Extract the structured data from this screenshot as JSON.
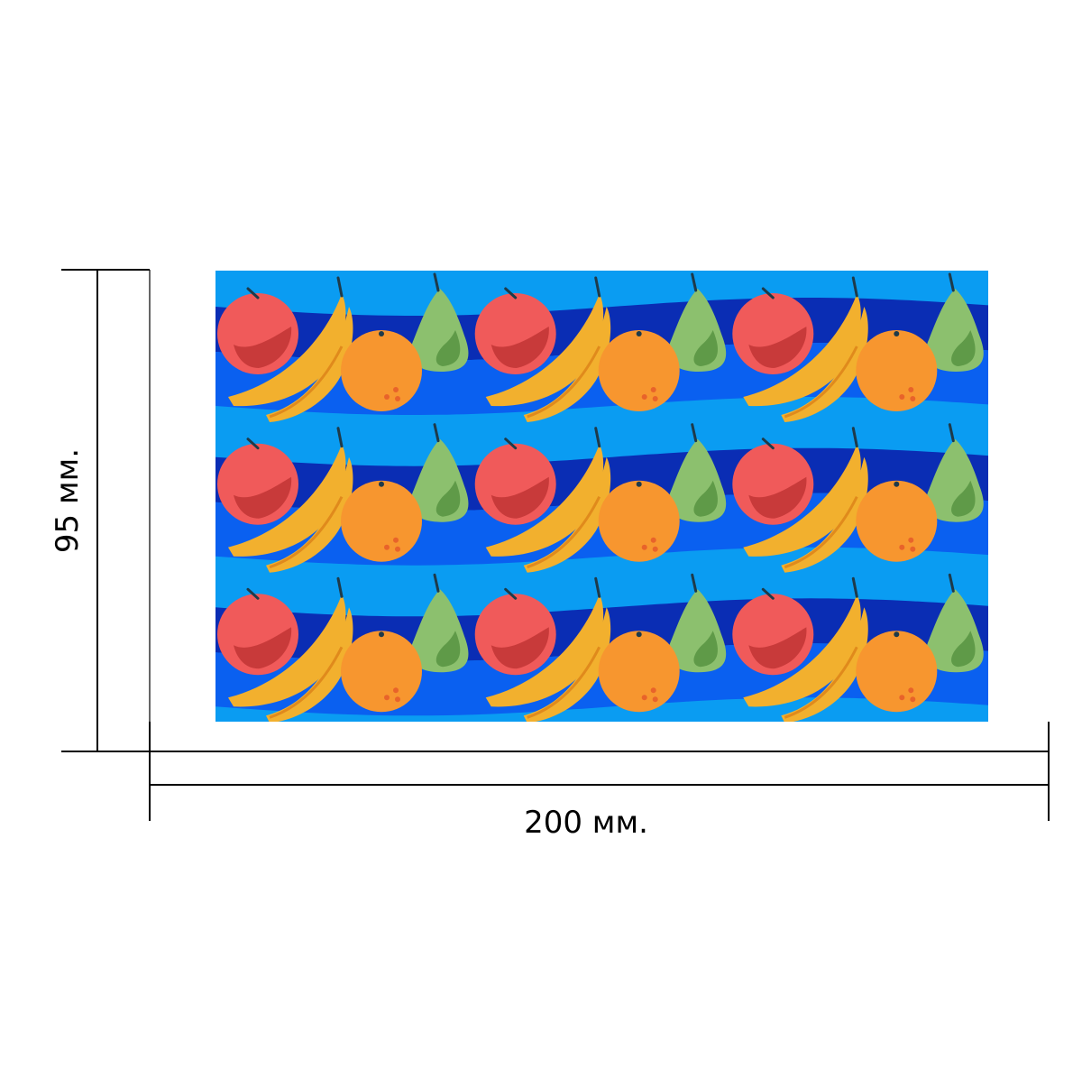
{
  "dimensions": {
    "width_label": "200 мм.",
    "height_label": "95 мм."
  },
  "pattern": {
    "rows": 3,
    "columns": 3,
    "motif": [
      "apple",
      "banana",
      "orange",
      "pear"
    ]
  },
  "colors": {
    "background": "#ffffff",
    "line": "#000000",
    "sky_blue": "#0a9cf2",
    "mid_blue": "#0a60f0",
    "dark_blue": "#0a2db4",
    "apple": "#f05a5a",
    "apple_shade": "#c83a3a",
    "banana": "#f2b02e",
    "banana_shade": "#e08a1c",
    "orange": "#f7962f",
    "orange_dot": "#e8632a",
    "pear": "#8cc06e",
    "pear_shade": "#5f9a48",
    "stem": "#1e3a4a"
  }
}
